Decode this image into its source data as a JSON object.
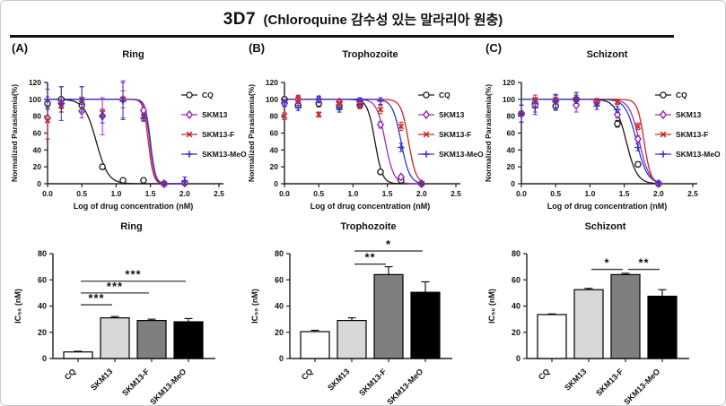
{
  "figure_title": {
    "main": "3D7",
    "sub": "(Chloroquine 감수성 있는 말라리아 원충)"
  },
  "panels": [
    {
      "label": "(A)"
    },
    {
      "label": "(B)"
    },
    {
      "label": "(C)"
    }
  ],
  "legend_entries": [
    "CQ",
    "SKM13",
    "SKM13-F",
    "SKM13-MeO"
  ],
  "colors": {
    "cq": "#1a1a1a",
    "skm13": "#9b30b0",
    "skm13f": "#cc2626",
    "skm13meo": "#3636cf",
    "bar_fills": [
      "#ffffff",
      "#d8d8d8",
      "#7f7f7f",
      "#000000"
    ],
    "sig_line": "#3c3c3c",
    "border": "#c9c9c9",
    "rule": "#111111"
  },
  "chart_data": [
    {
      "id": "A-dose",
      "type": "line",
      "panel": "(A)",
      "title": "Ring",
      "xlabel": "Log of drug concentration (nM)",
      "ylabel": "Normalized Parasitemia(%)",
      "xlim": [
        0,
        2.5
      ],
      "ylim": [
        0,
        120
      ],
      "xticks": [
        "0.0",
        "0.5",
        "1.0",
        "1.5",
        "2.0",
        "2.5"
      ],
      "yticks": [
        0,
        20,
        40,
        60,
        80,
        100,
        120
      ],
      "x": [
        0,
        0.2,
        0.5,
        0.8,
        1.1,
        1.4,
        1.7,
        2.0
      ],
      "legend_position": "right",
      "series": [
        {
          "name": "CQ",
          "marker": "circle-open",
          "color": "#1a1a1a",
          "ec50": 0.71,
          "hill": 5,
          "values": [
            95,
            100,
            93,
            20,
            4,
            4,
            0,
            1
          ],
          "errors": [
            5,
            15,
            5,
            3,
            1,
            1,
            1,
            2
          ]
        },
        {
          "name": "SKM13",
          "marker": "diamond",
          "color": "#9b30b0",
          "ec50": 1.49,
          "hill": 12,
          "values": [
            78,
            95,
            86,
            80,
            100,
            87,
            0,
            1
          ],
          "errors": [
            25,
            5,
            8,
            22,
            22,
            3,
            1,
            2
          ]
        },
        {
          "name": "SKM13-F",
          "marker": "x",
          "color": "#cc2626",
          "ec50": 1.47,
          "hill": 12,
          "values": [
            75,
            93,
            100,
            84,
            100,
            79,
            0,
            1
          ],
          "errors": [
            22,
            4,
            15,
            4,
            10,
            4,
            1,
            2
          ]
        },
        {
          "name": "SKM13-MeO",
          "marker": "plus",
          "color": "#3636cf",
          "ec50": 1.5,
          "hill": 12,
          "values": [
            100,
            95,
            100,
            80,
            98,
            78,
            0,
            3
          ],
          "errors": [
            12,
            20,
            15,
            8,
            22,
            4,
            1,
            5
          ]
        }
      ]
    },
    {
      "id": "A-bar",
      "type": "bar",
      "panel": "(A)",
      "title": "Ring",
      "ylabel": "IC₅₀ (nM)",
      "ylim": [
        0,
        80
      ],
      "yticks": [
        0,
        20,
        40,
        60,
        80
      ],
      "categories": [
        "CQ",
        "SKM13",
        "SKM13-F",
        "SKM13-MeO"
      ],
      "values": [
        5,
        31,
        29,
        28
      ],
      "errors": [
        0.5,
        1,
        1,
        2.5
      ],
      "bar_colors": [
        "#ffffff",
        "#d8d8d8",
        "#7f7f7f",
        "#000000"
      ],
      "significance": [
        {
          "from": 0,
          "to": 1,
          "label": "***",
          "y": 41
        },
        {
          "from": 0,
          "to": 2,
          "label": "***",
          "y": 50
        },
        {
          "from": 0,
          "to": 3,
          "label": "***",
          "y": 59
        }
      ]
    },
    {
      "id": "B-dose",
      "type": "line",
      "panel": "(B)",
      "title": "Trophozoite",
      "xlabel": "Log of drug concentration (nM)",
      "ylabel": "Normalized Parasitemia(%)",
      "xlim": [
        0,
        2.5
      ],
      "ylim": [
        0,
        120
      ],
      "xticks": [
        "0.0",
        "0.5",
        "1.0",
        "1.5",
        "2.0",
        "2.5"
      ],
      "yticks": [
        0,
        20,
        40,
        60,
        80,
        100,
        120
      ],
      "x": [
        0,
        0.2,
        0.5,
        0.8,
        1.1,
        1.4,
        1.7,
        2.0
      ],
      "legend_position": "right",
      "series": [
        {
          "name": "CQ",
          "marker": "circle-open",
          "color": "#1a1a1a",
          "ec50": 1.32,
          "hill": 8,
          "values": [
            100,
            93,
            95,
            92,
            93,
            14,
            4,
            0
          ],
          "errors": [
            2,
            3,
            4,
            3,
            3,
            2,
            2,
            1
          ]
        },
        {
          "name": "SKM13",
          "marker": "diamond",
          "color": "#9b30b0",
          "ec50": 1.47,
          "hill": 7,
          "values": [
            95,
            100,
            100,
            97,
            97,
            70,
            8,
            0
          ],
          "errors": [
            4,
            5,
            3,
            3,
            4,
            4,
            2,
            1
          ]
        },
        {
          "name": "SKM13-F",
          "marker": "x",
          "color": "#cc2626",
          "ec50": 1.81,
          "hill": 8,
          "values": [
            80,
            100,
            82,
            95,
            93,
            88,
            68,
            0
          ],
          "errors": [
            4,
            4,
            3,
            4,
            4,
            5,
            5,
            1
          ]
        },
        {
          "name": "SKM13-MeO",
          "marker": "plus",
          "color": "#3636cf",
          "ec50": 1.7,
          "hill": 7,
          "values": [
            96,
            90,
            100,
            88,
            98,
            98,
            43,
            0
          ],
          "errors": [
            4,
            3,
            4,
            3,
            4,
            4,
            5,
            1
          ]
        }
      ]
    },
    {
      "id": "B-bar",
      "type": "bar",
      "panel": "(B)",
      "title": "Trophozoite",
      "ylabel": "IC₅₀ (nM)",
      "ylim": [
        0,
        80
      ],
      "yticks": [
        0,
        20,
        40,
        60,
        80
      ],
      "categories": [
        "CQ",
        "SKM13",
        "SKM13-F",
        "SKM13-MeO"
      ],
      "values": [
        20.5,
        29,
        64,
        50.5
      ],
      "errors": [
        1,
        2,
        6,
        8
      ],
      "bar_colors": [
        "#ffffff",
        "#d8d8d8",
        "#7f7f7f",
        "#000000"
      ],
      "significance": [
        {
          "from": 1,
          "to": 2,
          "label": "**",
          "y": 72
        },
        {
          "from": 1,
          "to": 3,
          "label": "*",
          "y": 82
        }
      ]
    },
    {
      "id": "C-dose",
      "type": "line",
      "panel": "(C)",
      "title": "Schizont",
      "xlabel": "Log of drug concentration (nM)",
      "ylabel": "Normalized Parasitemia(%)",
      "xlim": [
        0,
        2.5
      ],
      "ylim": [
        0,
        120
      ],
      "xticks": [
        "0.0",
        "0.5",
        "1.0",
        "1.5",
        "2.0",
        "2.5"
      ],
      "yticks": [
        0,
        20,
        40,
        60,
        80,
        100,
        120
      ],
      "x": [
        0,
        0.2,
        0.5,
        0.8,
        1.1,
        1.4,
        1.7,
        2.0
      ],
      "legend_position": "right",
      "series": [
        {
          "name": "CQ",
          "marker": "circle-open",
          "color": "#1a1a1a",
          "ec50": 1.53,
          "hill": 5.5,
          "values": [
            83,
            95,
            92,
            100,
            97,
            71,
            23,
            0
          ],
          "errors": [
            10,
            5,
            5,
            8,
            3,
            4,
            3,
            1
          ]
        },
        {
          "name": "SKM13",
          "marker": "diamond",
          "color": "#9b30b0",
          "ec50": 1.72,
          "hill": 6,
          "values": [
            83,
            93,
            98,
            93,
            97,
            82,
            53,
            0
          ],
          "errors": [
            10,
            8,
            8,
            8,
            4,
            4,
            4,
            1
          ]
        },
        {
          "name": "SKM13-F",
          "marker": "x",
          "color": "#cc2626",
          "ec50": 1.79,
          "hill": 9,
          "values": [
            83,
            100,
            100,
            100,
            97,
            97,
            68,
            0
          ],
          "errors": [
            10,
            5,
            5,
            5,
            3,
            3,
            4,
            1
          ]
        },
        {
          "name": "SKM13-MeO",
          "marker": "plus",
          "color": "#3636cf",
          "ec50": 1.68,
          "hill": 5.5,
          "values": [
            83,
            90,
            97,
            100,
            92,
            88,
            43,
            1
          ],
          "errors": [
            10,
            8,
            8,
            5,
            4,
            4,
            4,
            2
          ]
        }
      ]
    },
    {
      "id": "C-bar",
      "type": "bar",
      "panel": "(C)",
      "title": "Schizont",
      "ylabel": "IC₅₀ (nM)",
      "ylim": [
        0,
        80
      ],
      "yticks": [
        0,
        20,
        40,
        60,
        80
      ],
      "categories": [
        "CQ",
        "SKM13",
        "SKM13-F",
        "SKM13-MeO"
      ],
      "values": [
        33.5,
        52.5,
        64,
        47.5
      ],
      "errors": [
        0.5,
        1,
        1,
        5
      ],
      "bar_colors": [
        "#ffffff",
        "#d8d8d8",
        "#7f7f7f",
        "#000000"
      ],
      "significance": [
        {
          "from": 1,
          "to": 2,
          "label": "*",
          "y": 68
        },
        {
          "from": 2,
          "to": 3,
          "label": "**",
          "y": 68
        }
      ]
    }
  ]
}
